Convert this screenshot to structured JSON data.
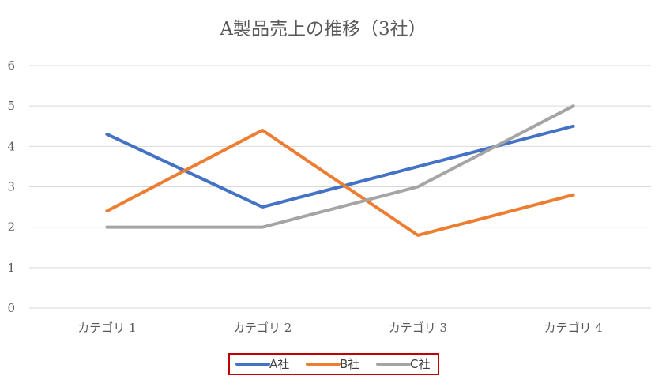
{
  "chart_data": {
    "type": "line",
    "title": "A製品売上の推移（3社）",
    "categories": [
      "カテゴリ 1",
      "カテゴリ 2",
      "カテゴリ 3",
      "カテゴリ 4"
    ],
    "series": [
      {
        "name": "A社",
        "values": [
          4.3,
          2.5,
          3.5,
          4.5
        ],
        "color": "#4472C4"
      },
      {
        "name": "B社",
        "values": [
          2.4,
          4.4,
          1.8,
          2.8
        ],
        "color": "#ED7D31"
      },
      {
        "name": "C社",
        "values": [
          2.0,
          2.0,
          3.0,
          5.0
        ],
        "color": "#A5A5A5"
      }
    ],
    "xlabel": "",
    "ylabel": "",
    "ylim": [
      0,
      6
    ],
    "yticks": [
      "0",
      "1",
      "2",
      "3",
      "4",
      "5",
      "6"
    ],
    "grid": true,
    "legend_position": "bottom",
    "legend_border_color": "#C00000"
  }
}
